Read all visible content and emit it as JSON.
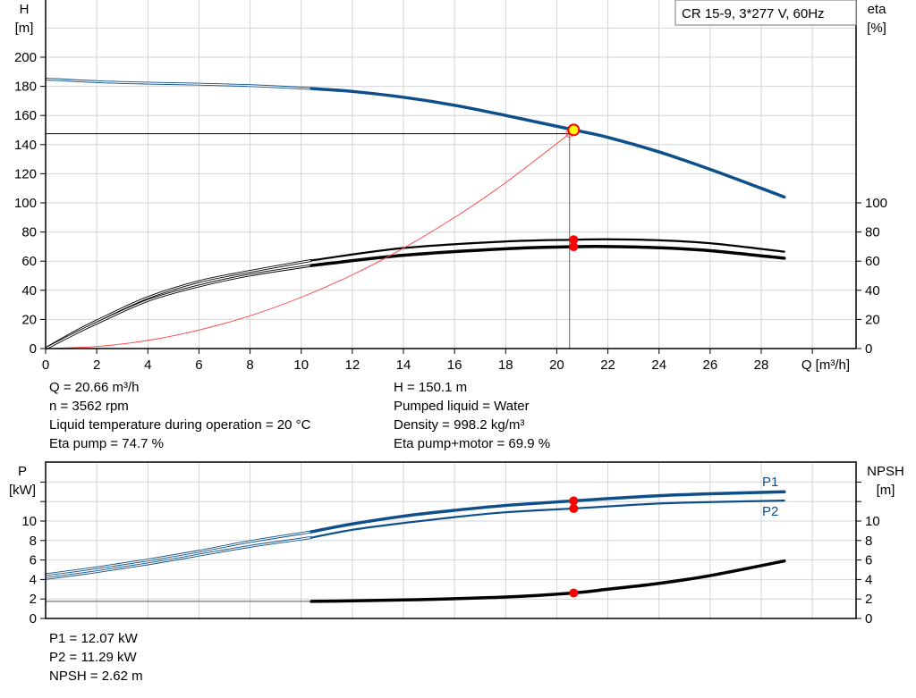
{
  "chart_data": [
    {
      "type": "line",
      "legend_box": "CR 15-9, 3*277 V, 60Hz",
      "xlabel": "Q [m³/h]",
      "ylabel_left": [
        "H",
        "[m]"
      ],
      "ylabel_right": [
        "eta",
        "[%]"
      ],
      "xlim": [
        0,
        31.7
      ],
      "ylim": [
        0,
        239
      ],
      "x_ticks": [
        0,
        2,
        4,
        6,
        8,
        10,
        12,
        14,
        16,
        18,
        20,
        22,
        24,
        26,
        28
      ],
      "y_ticks_left": [
        0,
        20,
        40,
        60,
        80,
        100,
        120,
        140,
        160,
        180,
        200
      ],
      "y_ticks_right": [
        0,
        20,
        40,
        60,
        80,
        100
      ],
      "grid": true,
      "series": [
        {
          "key": "H",
          "color": "#0e4f8a",
          "x": [
            0,
            2,
            4,
            6,
            8,
            10.4,
            12,
            14,
            16,
            18,
            20.66,
            22,
            24,
            26,
            28,
            28.9
          ],
          "y": [
            185,
            183.2,
            182.2,
            181.5,
            180.5,
            178.5,
            176.5,
            172.5,
            167,
            160,
            150.1,
            145,
            135,
            123,
            110,
            104
          ],
          "thick_from": 10.4
        },
        {
          "key": "eta_pump",
          "color": "#000000",
          "x": [
            0,
            1,
            2,
            4,
            6,
            8,
            10.4,
            14,
            18,
            20.66,
            22,
            24,
            26,
            28.9
          ],
          "y": [
            0,
            10,
            19,
            35,
            46,
            53,
            60.5,
            69,
            73.5,
            74.7,
            75,
            74.3,
            72.3,
            66.5
          ],
          "thick_from": 10.4
        },
        {
          "key": "eta_pump_motor",
          "color": "#000000",
          "x": [
            0,
            1,
            2,
            4,
            6,
            8,
            10.4,
            14,
            18,
            20.66,
            22,
            24,
            26,
            28.9
          ],
          "y": [
            0,
            9,
            17.5,
            33,
            43,
            50.5,
            57,
            64,
            68.5,
            69.9,
            70,
            69.2,
            67.2,
            62
          ],
          "thick_from": 10.4
        },
        {
          "key": "system_curve",
          "color": "#ff4040",
          "x": [
            0,
            2,
            4,
            6,
            8,
            10,
            12,
            14,
            16,
            18,
            20.5
          ],
          "y": [
            0,
            1.4,
            5.6,
            12.7,
            22.5,
            35.2,
            50.6,
            68.9,
            90,
            113.9,
            147.5
          ]
        }
      ],
      "operating_point": {
        "Q": 20.66,
        "H": 150.1,
        "eta_pump": 74.7,
        "eta_pump_motor": 69.9,
        "guide_Q": 20.5,
        "guide_H": 147.5
      }
    },
    {
      "type": "line",
      "ylabel_left": [
        "P",
        "[kW]"
      ],
      "ylabel_right": [
        "NPSH",
        "[m]"
      ],
      "xlim": [
        0,
        31.7
      ],
      "ylim": [
        0,
        16
      ],
      "y_ticks_labeled": [
        0,
        2,
        4,
        6,
        8,
        10
      ],
      "grid": true,
      "series": [
        {
          "name": "P1",
          "color": "#0e4f8a",
          "x": [
            0,
            2,
            4,
            6,
            8,
            10.4,
            12,
            14,
            16,
            18,
            20.66,
            22,
            24,
            26,
            28.9
          ],
          "y": [
            4.5,
            5.2,
            6.0,
            6.9,
            7.9,
            8.9,
            9.7,
            10.5,
            11.1,
            11.6,
            12.07,
            12.3,
            12.6,
            12.8,
            13.0
          ],
          "thick_from": 10.4
        },
        {
          "name": "P2",
          "color": "#0e4f8a",
          "x": [
            0,
            2,
            4,
            6,
            8,
            10.4,
            12,
            14,
            16,
            18,
            20.66,
            22,
            24,
            26,
            28.9
          ],
          "y": [
            4.1,
            4.8,
            5.6,
            6.5,
            7.4,
            8.3,
            9.1,
            9.8,
            10.4,
            10.9,
            11.29,
            11.5,
            11.8,
            11.95,
            12.1
          ],
          "thick_from": 10.4
        },
        {
          "key": "NPSH",
          "color": "#000000",
          "x": [
            0,
            10.4,
            14,
            18,
            20.66,
            22,
            24,
            26,
            28.9
          ],
          "y": [
            1.75,
            1.75,
            1.9,
            2.2,
            2.62,
            3.0,
            3.6,
            4.4,
            5.9
          ],
          "thick_from": 10.4
        }
      ],
      "operating_point": {
        "Q": 20.66,
        "P1": 12.07,
        "P2": 11.29,
        "NPSH": 2.62
      }
    }
  ],
  "readout_top": {
    "left": [
      "Q = 20.66 m³/h",
      "n = 3562 rpm",
      "Liquid temperature during operation = 20 °C",
      "Eta pump = 74.7 %"
    ],
    "right": [
      "H = 150.1 m",
      "Pumped liquid = Water",
      "Density = 998.2 kg/m³",
      "Eta pump+motor = 69.9 %"
    ]
  },
  "readout_bottom": [
    "P1 = 12.07 kW",
    "P2 = 11.29 kW",
    "NPSH = 2.62 m"
  ]
}
